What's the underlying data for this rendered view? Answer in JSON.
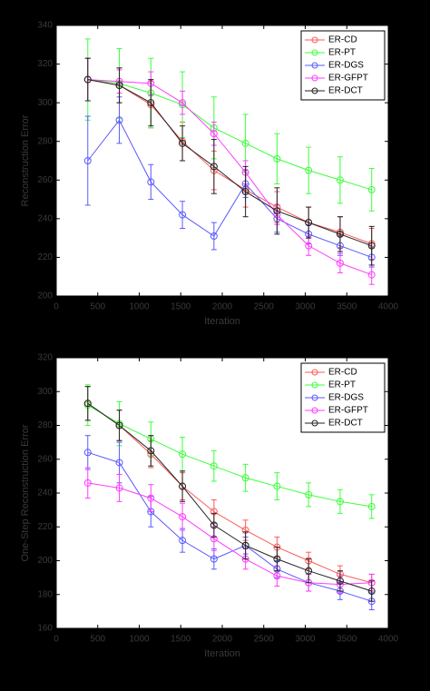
{
  "chart_data": [
    {
      "type": "line",
      "x_label": "Iteration",
      "y_label": "Reconstruction Error",
      "x": [
        380,
        760,
        1140,
        1520,
        1900,
        2280,
        2660,
        3040,
        3420,
        3800
      ],
      "xlim": [
        0,
        4000
      ],
      "xticks": [
        0,
        500,
        1000,
        1500,
        2000,
        2500,
        3000,
        3500,
        4000
      ],
      "ylim": [
        200,
        340
      ],
      "yticks": [
        200,
        220,
        240,
        260,
        280,
        300,
        320,
        340
      ],
      "legend": "upper right",
      "series": [
        {
          "name": "ER-CD",
          "color": "#ff5a5a",
          "values": [
            312,
            309,
            299,
            280,
            265,
            255,
            246,
            238,
            233,
            227
          ],
          "errors": [
            11,
            9,
            12,
            10,
            10,
            9,
            8,
            8,
            8,
            8
          ]
        },
        {
          "name": "ER-PT",
          "color": "#3cff3c",
          "values": [
            312,
            310,
            305,
            299,
            287,
            279,
            271,
            265,
            260,
            255
          ],
          "errors": [
            21,
            18,
            18,
            17,
            16,
            15,
            13,
            12,
            12,
            11
          ]
        },
        {
          "name": "ER-DGS",
          "color": "#5a5aff",
          "values": [
            270,
            291,
            259,
            242,
            231,
            258,
            240,
            232,
            226,
            220
          ],
          "errors": [
            23,
            12,
            9,
            7,
            7,
            7,
            7,
            5,
            5,
            5
          ]
        },
        {
          "name": "ER-GFPT",
          "color": "#ff3cff",
          "values": [
            312,
            311,
            310,
            300,
            284,
            264,
            242,
            226,
            217,
            211
          ],
          "errors": [
            11,
            6,
            6,
            6,
            6,
            6,
            5,
            5,
            5,
            5
          ]
        },
        {
          "name": "ER-DCT",
          "color": "#222222",
          "values": [
            312,
            309,
            300,
            279,
            267,
            254,
            244,
            238,
            232,
            226
          ],
          "errors": [
            11,
            9,
            12,
            9,
            14,
            13,
            12,
            8,
            9,
            10
          ]
        }
      ]
    },
    {
      "type": "line",
      "x_label": "Iteration",
      "y_label": "One-Step Reconstruction Error",
      "x": [
        380,
        760,
        1140,
        1520,
        1900,
        2280,
        2660,
        3040,
        3420,
        3800
      ],
      "xlim": [
        0,
        4000
      ],
      "xticks": [
        0,
        500,
        1000,
        1500,
        2000,
        2500,
        3000,
        3500,
        4000
      ],
      "ylim": [
        160,
        320
      ],
      "yticks": [
        160,
        180,
        200,
        220,
        240,
        260,
        280,
        300,
        320
      ],
      "legend": "upper right",
      "series": [
        {
          "name": "ER-CD",
          "color": "#ff5a5a",
          "values": [
            293,
            280,
            263,
            244,
            229,
            218,
            208,
            200,
            192,
            187
          ],
          "errors": [
            10,
            9,
            8,
            8,
            7,
            6,
            6,
            5,
            5,
            5
          ]
        },
        {
          "name": "ER-PT",
          "color": "#3cff3c",
          "values": [
            292,
            281,
            272,
            263,
            256,
            249,
            244,
            239,
            235,
            232
          ],
          "errors": [
            12,
            13,
            10,
            10,
            9,
            8,
            8,
            7,
            7,
            7
          ]
        },
        {
          "name": "ER-DGS",
          "color": "#5a5aff",
          "values": [
            264,
            258,
            229,
            212,
            201,
            209,
            195,
            187,
            182,
            176
          ],
          "errors": [
            10,
            12,
            9,
            7,
            6,
            5,
            5,
            5,
            5,
            5
          ]
        },
        {
          "name": "ER-GFPT",
          "color": "#ff3cff",
          "values": [
            246,
            243,
            237,
            226,
            213,
            201,
            191,
            187,
            186,
            187
          ],
          "errors": [
            9,
            8,
            8,
            8,
            7,
            6,
            6,
            5,
            5,
            5
          ]
        },
        {
          "name": "ER-DCT",
          "color": "#222222",
          "values": [
            293,
            280,
            265,
            244,
            221,
            209,
            201,
            194,
            188,
            182
          ],
          "errors": [
            10,
            9,
            9,
            9,
            7,
            8,
            7,
            7,
            6,
            6
          ]
        }
      ]
    }
  ]
}
